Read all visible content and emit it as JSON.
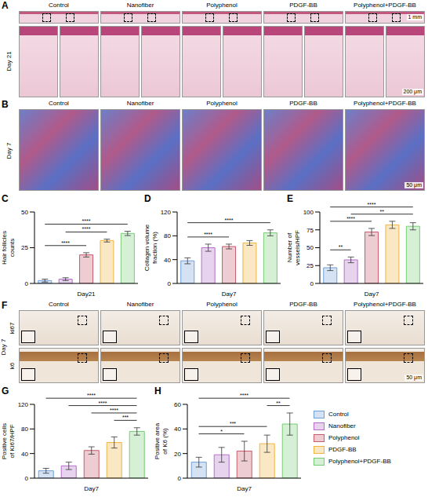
{
  "figure": {
    "groups": [
      "Control",
      "Nanofiber",
      "Polyphenol",
      "PDGF-BB",
      "Polyphenol+PDGF-BB"
    ],
    "A": {
      "letter": "A",
      "day": "Day 21",
      "scale_top": "1 mm",
      "scale_bottom": "200 μm"
    },
    "B": {
      "letter": "B",
      "day": "Day 7",
      "scale": "50 μm"
    },
    "F": {
      "letter": "F",
      "day": "Day 7",
      "rows": [
        "ki67",
        "k6"
      ],
      "scale": "50 μm"
    }
  },
  "chart_data": [
    {
      "panel": "C",
      "type": "bar",
      "categories": [
        "Control",
        "Nanofiber",
        "Polyphenol",
        "PDGF-BB",
        "Polyphenol+PDGF-BB"
      ],
      "values": [
        2,
        3,
        20,
        30,
        35
      ],
      "errors": [
        1,
        1,
        1.5,
        1,
        1.5
      ],
      "colors": [
        "#6f9fd8",
        "#b46ec8",
        "#c85a6a",
        "#f0b43c",
        "#76cc76"
      ],
      "ylim": [
        0,
        50
      ],
      "yticks": [
        0,
        25,
        50
      ],
      "y_label": "Hair follicles counts",
      "x_label": "Day21",
      "tick_labels": "y",
      "significance": [
        {
          "from": "Control",
          "to": "Polyphenol",
          "label": "****"
        },
        {
          "from": "Nanofiber",
          "to": "PDGF-BB",
          "label": "****"
        },
        {
          "from": "Control",
          "to": "Polyphenol+PDGF-BB",
          "label": "****"
        }
      ]
    },
    {
      "panel": "D",
      "type": "bar",
      "categories": [
        "Control",
        "Nanofiber",
        "Polyphenol",
        "PDGF-BB",
        "Polyphenol+PDGF-BB"
      ],
      "values": [
        38,
        60,
        62,
        68,
        85
      ],
      "errors": [
        5,
        6,
        4,
        4,
        5
      ],
      "colors": [
        "#6f9fd8",
        "#b46ec8",
        "#c85a6a",
        "#f0b43c",
        "#76cc76"
      ],
      "ylim": [
        0,
        120
      ],
      "yticks": [
        0,
        40,
        80,
        120
      ],
      "y_label": "Collagen volume fraction (%)",
      "x_label": "Day7",
      "tick_labels": "y",
      "significance": [
        {
          "from": "Control",
          "to": "Polyphenol",
          "label": "****"
        },
        {
          "from": "Control",
          "to": "Polyphenol+PDGF-BB",
          "label": "****"
        }
      ]
    },
    {
      "panel": "E",
      "type": "bar",
      "categories": [
        "Control",
        "Nanofiber",
        "Polyphenol",
        "PDGF-BB",
        "Polyphenol+PDGF-BB"
      ],
      "values": [
        22,
        33,
        72,
        82,
        80
      ],
      "errors": [
        4,
        4,
        5,
        5,
        5
      ],
      "colors": [
        "#6f9fd8",
        "#b46ec8",
        "#c85a6a",
        "#f0b43c",
        "#76cc76"
      ],
      "ylim": [
        0,
        100
      ],
      "yticks": [
        0,
        25,
        50,
        75,
        100
      ],
      "y_label": "Number of vessels/HPF",
      "x_label": "Day7",
      "tick_labels": "y",
      "significance": [
        {
          "from": "Control",
          "to": "Nanofiber",
          "label": "**"
        },
        {
          "from": "Control",
          "to": "Polyphenol",
          "label": "****"
        },
        {
          "from": "Nanofiber",
          "to": "Polyphenol+PDGF-BB",
          "label": "**"
        },
        {
          "from": "Control",
          "to": "Polyphenol+PDGF-BB",
          "label": "****"
        }
      ]
    },
    {
      "panel": "G",
      "type": "bar",
      "categories": [
        "Control",
        "Nanofiber",
        "Polyphenol",
        "PDGF-BB",
        "Polyphenol+PDGF-BB"
      ],
      "values": [
        12,
        20,
        45,
        58,
        76
      ],
      "errors": [
        4,
        6,
        6,
        9,
        6
      ],
      "colors": [
        "#6f9fd8",
        "#b46ec8",
        "#c85a6a",
        "#f0b43c",
        "#76cc76"
      ],
      "ylim": [
        0,
        120
      ],
      "yticks": [
        0,
        40,
        80,
        120
      ],
      "y_label": "Positive cells of Ki67/HPF",
      "x_label": "Day7",
      "tick_labels": "y",
      "significance": [
        {
          "from": "PDGF-BB",
          "to": "Polyphenol+PDGF-BB",
          "label": "***"
        },
        {
          "from": "Polyphenol",
          "to": "Polyphenol+PDGF-BB",
          "label": "****"
        },
        {
          "from": "Nanofiber",
          "to": "Polyphenol+PDGF-BB",
          "label": "****"
        },
        {
          "from": "Control",
          "to": "Polyphenol+PDGF-BB",
          "label": "****"
        }
      ]
    },
    {
      "panel": "H",
      "type": "bar",
      "categories": [
        "Control",
        "Nanofiber",
        "Polyphenol",
        "PDGF-BB",
        "Polyphenol+PDGF-BB"
      ],
      "values": [
        13,
        19,
        22,
        28,
        44
      ],
      "errors": [
        4,
        6,
        8,
        7,
        9
      ],
      "colors": [
        "#6f9fd8",
        "#b46ec8",
        "#c85a6a",
        "#f0b43c",
        "#76cc76"
      ],
      "ylim": [
        0,
        60
      ],
      "yticks": [
        0,
        20,
        40,
        60
      ],
      "y_label": "Positive area of K6 (%)",
      "x_label": "Day7",
      "tick_labels": "y",
      "legend": "right",
      "significance": [
        {
          "from": "Control",
          "to": "Polyphenol",
          "label": "*"
        },
        {
          "from": "Control",
          "to": "PDGF-BB",
          "label": "***"
        },
        {
          "from": "PDGF-BB",
          "to": "Polyphenol+PDGF-BB",
          "label": "**"
        },
        {
          "from": "Control",
          "to": "Polyphenol+PDGF-BB",
          "label": "****"
        }
      ]
    }
  ]
}
